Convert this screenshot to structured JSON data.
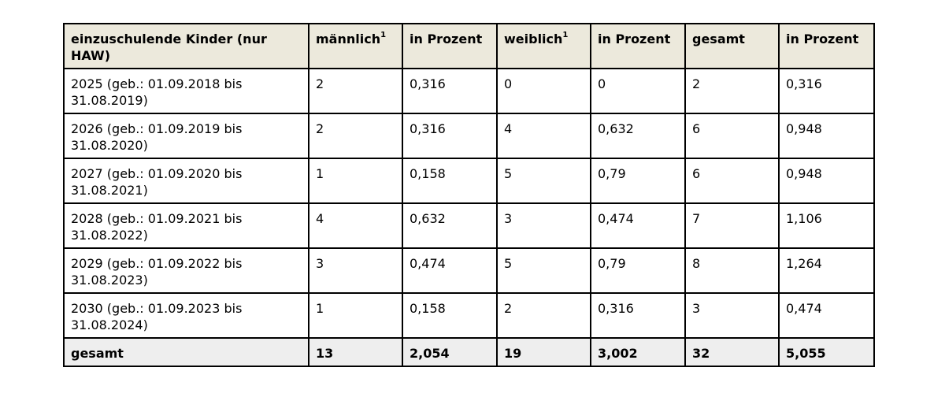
{
  "table": {
    "headers": [
      {
        "label": "einzuschulende Kinder (nur HAW)",
        "sup": ""
      },
      {
        "label": "männlich",
        "sup": "1"
      },
      {
        "label": "in Prozent",
        "sup": ""
      },
      {
        "label": "weiblich",
        "sup": "1"
      },
      {
        "label": "in Prozent",
        "sup": ""
      },
      {
        "label": "gesamt",
        "sup": ""
      },
      {
        "label": "in Prozent",
        "sup": ""
      }
    ],
    "rows": [
      [
        "2025 (geb.: 01.09.2018 bis 31.08.2019)",
        "2",
        "0,316",
        "0",
        "0",
        "2",
        "0,316"
      ],
      [
        "2026 (geb.: 01.09.2019 bis 31.08.2020)",
        "2",
        "0,316",
        "4",
        "0,632",
        "6",
        "0,948"
      ],
      [
        "2027 (geb.: 01.09.2020 bis 31.08.2021)",
        "1",
        "0,158",
        "5",
        "0,79",
        "6",
        "0,948"
      ],
      [
        "2028 (geb.: 01.09.2021 bis 31.08.2022)",
        "4",
        "0,632",
        "3",
        "0,474",
        "7",
        "1,106"
      ],
      [
        "2029 (geb.: 01.09.2022 bis 31.08.2023)",
        "3",
        "0,474",
        "5",
        "0,79",
        "8",
        "1,264"
      ],
      [
        "2030 (geb.: 01.09.2023 bis 31.08.2024)",
        "1",
        "0,158",
        "2",
        "0,316",
        "3",
        "0,474"
      ]
    ],
    "footer": [
      "gesamt",
      "13",
      "2,054",
      "19",
      "3,002",
      "32",
      "5,055"
    ]
  }
}
